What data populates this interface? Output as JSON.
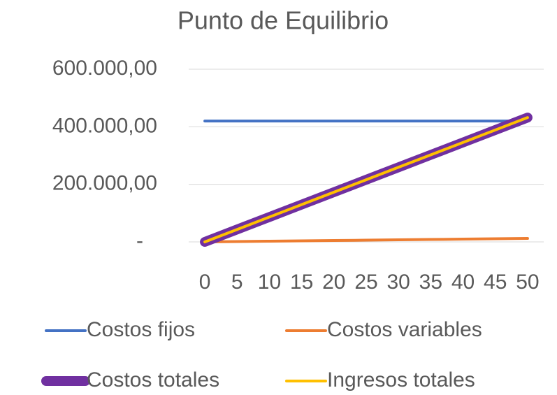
{
  "chart_data": {
    "type": "line",
    "title": "Punto de Equilibrio",
    "categories": [
      "0",
      "5",
      "10",
      "15",
      "20",
      "25",
      "30",
      "35",
      "40",
      "45",
      "50"
    ],
    "series": [
      {
        "name": "Costos fijos",
        "color": "#4472c4",
        "values": [
          420000,
          420000,
          420000,
          420000,
          420000,
          420000,
          420000,
          420000,
          420000,
          420000,
          420000
        ]
      },
      {
        "name": "Costos variables",
        "color": "#ed7d31",
        "values": [
          0,
          1200,
          2400,
          3600,
          4800,
          6000,
          7200,
          8400,
          9600,
          10800,
          12000
        ]
      },
      {
        "name": "Costos totales",
        "color": "#7030a0",
        "values": [
          0,
          43200,
          86400,
          129600,
          172800,
          216000,
          259200,
          302400,
          345600,
          388800,
          432000
        ]
      },
      {
        "name": "Ingresos totales",
        "color": "#ffc000",
        "values": [
          0,
          43200,
          86400,
          129600,
          172800,
          216000,
          259200,
          302400,
          345600,
          388800,
          432000
        ]
      }
    ],
    "ylim": [
      0,
      600000
    ],
    "yticks": [
      {
        "value": 0,
        "label": "-"
      },
      {
        "value": 200000,
        "label": "200.000,00"
      },
      {
        "value": 400000,
        "label": "400.000,00"
      },
      {
        "value": 600000,
        "label": "600.000,00"
      }
    ],
    "grid": true
  }
}
